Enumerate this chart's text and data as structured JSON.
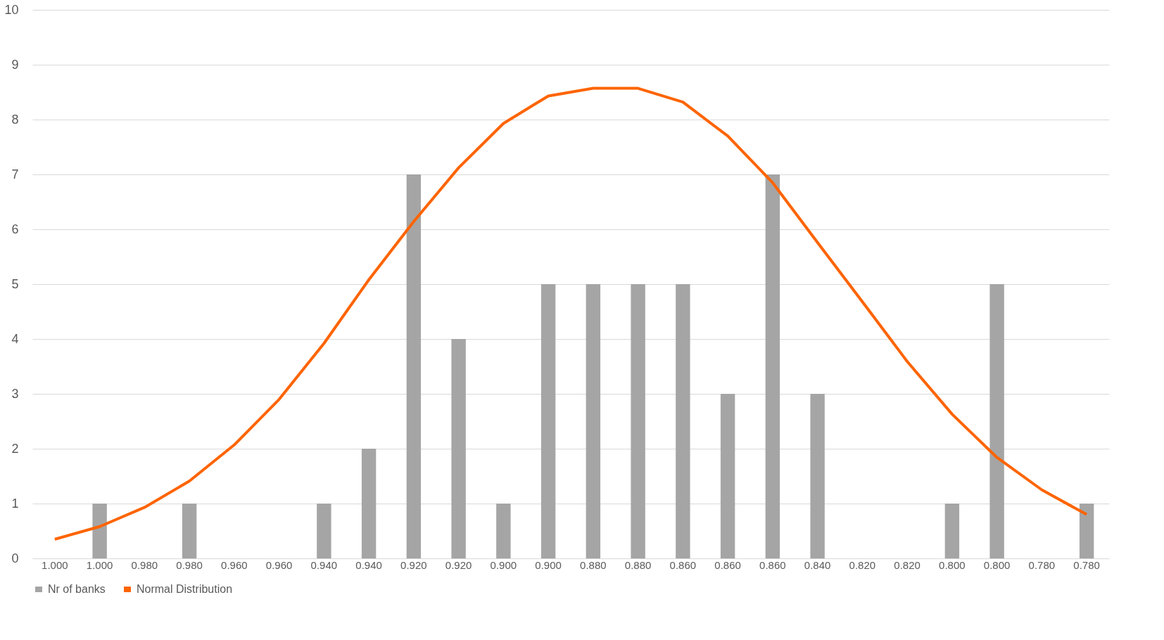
{
  "chart_data": {
    "type": "bar",
    "categories": [
      "1.000",
      "1.000",
      "0.980",
      "0.980",
      "0.960",
      "0.960",
      "0.940",
      "0.940",
      "0.920",
      "0.920",
      "0.900",
      "0.900",
      "0.880",
      "0.880",
      "0.860",
      "0.860",
      "0.860",
      "0.840",
      "0.820",
      "0.820",
      "0.800",
      "0.800",
      "0.780",
      "0.780"
    ],
    "series": [
      {
        "name": "Nr of banks",
        "color": "#a5a5a5",
        "values": [
          0,
          1,
          0,
          1,
          0,
          0,
          1,
          2,
          7,
          4,
          1,
          5,
          5,
          5,
          5,
          3,
          7,
          3,
          0,
          0,
          1,
          5,
          0,
          1
        ]
      },
      {
        "name": "Normal Distribution",
        "type": "line",
        "color": "#fe6400",
        "values": [
          0.35,
          0.58,
          0.93,
          1.41,
          2.07,
          2.9,
          3.92,
          5.08,
          6.14,
          7.12,
          7.93,
          8.43,
          8.57,
          8.57,
          8.32,
          7.7,
          6.85,
          5.76,
          4.68,
          3.59,
          2.63,
          1.84,
          1.25,
          0.8
        ]
      }
    ],
    "ylim": [
      0,
      10
    ],
    "yticks": [
      0,
      1,
      2,
      3,
      4,
      5,
      6,
      7,
      8,
      9,
      10
    ],
    "grid": "y",
    "legend": "bottom",
    "line_style": "solid",
    "marker": "none"
  }
}
